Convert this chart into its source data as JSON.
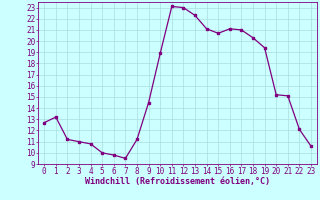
{
  "x": [
    0,
    1,
    2,
    3,
    4,
    5,
    6,
    7,
    8,
    9,
    10,
    11,
    12,
    13,
    14,
    15,
    16,
    17,
    18,
    19,
    20,
    21,
    22,
    23
  ],
  "y": [
    12.7,
    13.2,
    11.2,
    11.0,
    10.8,
    10.0,
    9.8,
    9.5,
    11.2,
    14.5,
    18.9,
    23.1,
    23.0,
    22.3,
    21.1,
    20.7,
    21.1,
    21.0,
    20.3,
    19.4,
    15.2,
    15.1,
    12.1,
    10.6
  ],
  "line_color": "#800080",
  "marker": "s",
  "marker_size": 1.8,
  "bg_color": "#ccffff",
  "grid_color": "#aadddd",
  "xlabel": "Windchill (Refroidissement éolien,°C)",
  "xlabel_fontsize": 6.0,
  "tick_fontsize": 5.5,
  "xlim": [
    -0.5,
    23.5
  ],
  "ylim": [
    9,
    23.5
  ],
  "yticks": [
    9,
    10,
    11,
    12,
    13,
    14,
    15,
    16,
    17,
    18,
    19,
    20,
    21,
    22,
    23
  ],
  "xticks": [
    0,
    1,
    2,
    3,
    4,
    5,
    6,
    7,
    8,
    9,
    10,
    11,
    12,
    13,
    14,
    15,
    16,
    17,
    18,
    19,
    20,
    21,
    22,
    23
  ]
}
